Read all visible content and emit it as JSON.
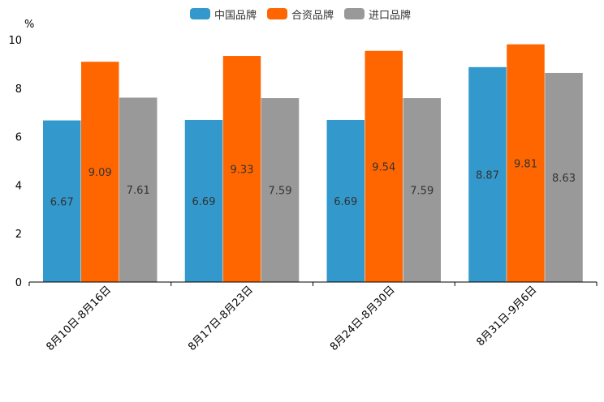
{
  "chart_data": {
    "type": "bar",
    "ylabel": "%",
    "ylim": [
      0,
      10
    ],
    "yticks": [
      "0",
      "2",
      "4",
      "6",
      "8",
      "10"
    ],
    "categories": [
      "8月10日-8月16日",
      "8月17日-8月23日",
      "8月24日-8月30日",
      "8月31日-9月6日"
    ],
    "series": [
      {
        "name": "中国品牌",
        "color": "#3399cc",
        "values": [
          6.67,
          6.69,
          6.69,
          8.87
        ],
        "labels": [
          "6.67",
          "6.69",
          "6.69",
          "8.87"
        ]
      },
      {
        "name": "合资品牌",
        "color": "#ff6600",
        "values": [
          9.09,
          9.33,
          9.54,
          9.81
        ],
        "labels": [
          "9.09",
          "9.33",
          "9.54",
          "9.81"
        ]
      },
      {
        "name": "进口品牌",
        "color": "#999999",
        "values": [
          7.61,
          7.59,
          7.59,
          8.63
        ],
        "labels": [
          "7.61",
          "7.59",
          "7.59",
          "8.63"
        ]
      }
    ]
  }
}
